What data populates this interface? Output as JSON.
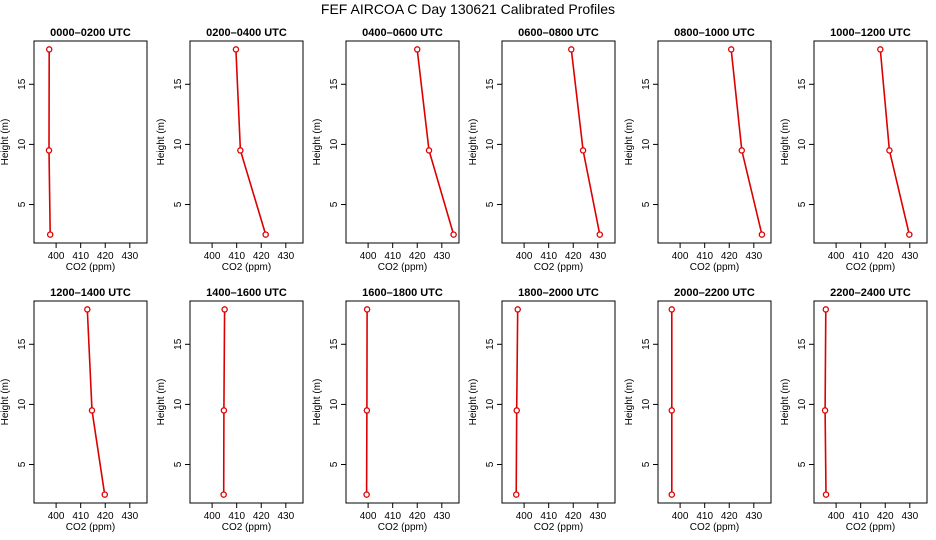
{
  "figure": {
    "title": "FEF AIRCOA C  Day 130621  Calibrated Profiles"
  },
  "colors": {
    "series": "#dd0000",
    "axes": "#000000"
  },
  "chart_data": [
    {
      "type": "line",
      "title": "0000–0200 UTC",
      "xlabel": "CO2 (ppm)",
      "ylabel": "Height (m)",
      "xlim": [
        391,
        437
      ],
      "ylim": [
        1.8,
        18.6
      ],
      "xticks": [
        400,
        410,
        420,
        430
      ],
      "yticks": [
        5,
        10,
        15
      ],
      "grid": false,
      "series": [
        {
          "points": [
            {
              "x": 397.6,
              "y": 2.5
            },
            {
              "x": 397.1,
              "y": 9.5
            },
            {
              "x": 397.2,
              "y": 17.9
            }
          ]
        }
      ]
    },
    {
      "type": "line",
      "title": "0200–0400 UTC",
      "xlabel": "CO2 (ppm)",
      "ylabel": "Height (m)",
      "xlim": [
        391,
        437
      ],
      "ylim": [
        1.8,
        18.6
      ],
      "xticks": [
        400,
        410,
        420,
        430
      ],
      "yticks": [
        5,
        10,
        15
      ],
      "grid": false,
      "series": [
        {
          "points": [
            {
              "x": 421.8,
              "y": 2.5
            },
            {
              "x": 411.5,
              "y": 9.5
            },
            {
              "x": 409.7,
              "y": 17.9
            }
          ]
        }
      ]
    },
    {
      "type": "line",
      "title": "0400–0600 UTC",
      "xlabel": "CO2 (ppm)",
      "ylabel": "Height (m)",
      "xlim": [
        391,
        437
      ],
      "ylim": [
        1.8,
        18.6
      ],
      "xticks": [
        400,
        410,
        420,
        430
      ],
      "yticks": [
        5,
        10,
        15
      ],
      "grid": false,
      "series": [
        {
          "points": [
            {
              "x": 434.8,
              "y": 2.5
            },
            {
              "x": 424.8,
              "y": 9.5
            },
            {
              "x": 420.0,
              "y": 17.9
            }
          ]
        }
      ]
    },
    {
      "type": "line",
      "title": "0600–0800 UTC",
      "xlabel": "CO2 (ppm)",
      "ylabel": "Height (m)",
      "xlim": [
        391,
        437
      ],
      "ylim": [
        1.8,
        18.6
      ],
      "xticks": [
        400,
        410,
        420,
        430
      ],
      "yticks": [
        5,
        10,
        15
      ],
      "grid": false,
      "series": [
        {
          "points": [
            {
              "x": 430.8,
              "y": 2.5
            },
            {
              "x": 424.0,
              "y": 9.5
            },
            {
              "x": 419.2,
              "y": 17.9
            }
          ]
        }
      ]
    },
    {
      "type": "line",
      "title": "0800–1000 UTC",
      "xlabel": "CO2 (ppm)",
      "ylabel": "Height (m)",
      "xlim": [
        391,
        437
      ],
      "ylim": [
        1.8,
        18.6
      ],
      "xticks": [
        400,
        410,
        420,
        430
      ],
      "yticks": [
        5,
        10,
        15
      ],
      "grid": false,
      "series": [
        {
          "points": [
            {
              "x": 433.3,
              "y": 2.5
            },
            {
              "x": 425.1,
              "y": 9.5
            },
            {
              "x": 420.8,
              "y": 17.9
            }
          ]
        }
      ]
    },
    {
      "type": "line",
      "title": "1000–1200 UTC",
      "xlabel": "CO2 (ppm)",
      "ylabel": "Height (m)",
      "xlim": [
        391,
        437
      ],
      "ylim": [
        1.8,
        18.6
      ],
      "xticks": [
        400,
        410,
        420,
        430
      ],
      "yticks": [
        5,
        10,
        15
      ],
      "grid": false,
      "series": [
        {
          "points": [
            {
              "x": 429.8,
              "y": 2.5
            },
            {
              "x": 421.7,
              "y": 9.5
            },
            {
              "x": 418.0,
              "y": 17.9
            }
          ]
        }
      ]
    },
    {
      "type": "line",
      "title": "1200–1400 UTC",
      "xlabel": "CO2 (ppm)",
      "ylabel": "Height (m)",
      "xlim": [
        391,
        437
      ],
      "ylim": [
        1.8,
        18.6
      ],
      "xticks": [
        400,
        410,
        420,
        430
      ],
      "yticks": [
        5,
        10,
        15
      ],
      "grid": false,
      "series": [
        {
          "points": [
            {
              "x": 419.8,
              "y": 2.5
            },
            {
              "x": 414.6,
              "y": 9.5
            },
            {
              "x": 412.7,
              "y": 17.9
            }
          ]
        }
      ]
    },
    {
      "type": "line",
      "title": "1400–1600 UTC",
      "xlabel": "CO2 (ppm)",
      "ylabel": "Height (m)",
      "xlim": [
        391,
        437
      ],
      "ylim": [
        1.8,
        18.6
      ],
      "xticks": [
        400,
        410,
        420,
        430
      ],
      "yticks": [
        5,
        10,
        15
      ],
      "grid": false,
      "series": [
        {
          "points": [
            {
              "x": 404.7,
              "y": 2.5
            },
            {
              "x": 404.8,
              "y": 9.5
            },
            {
              "x": 405.1,
              "y": 17.9
            }
          ]
        }
      ]
    },
    {
      "type": "line",
      "title": "1600–1800 UTC",
      "xlabel": "CO2 (ppm)",
      "ylabel": "Height (m)",
      "xlim": [
        391,
        437
      ],
      "ylim": [
        1.8,
        18.6
      ],
      "xticks": [
        400,
        410,
        420,
        430
      ],
      "yticks": [
        5,
        10,
        15
      ],
      "grid": false,
      "series": [
        {
          "points": [
            {
              "x": 399.4,
              "y": 2.5
            },
            {
              "x": 399.5,
              "y": 9.5
            },
            {
              "x": 399.6,
              "y": 17.9
            }
          ]
        }
      ]
    },
    {
      "type": "line",
      "title": "1800–2000 UTC",
      "xlabel": "CO2 (ppm)",
      "ylabel": "Height (m)",
      "xlim": [
        391,
        437
      ],
      "ylim": [
        1.8,
        18.6
      ],
      "xticks": [
        400,
        410,
        420,
        430
      ],
      "yticks": [
        5,
        10,
        15
      ],
      "grid": false,
      "series": [
        {
          "points": [
            {
              "x": 396.8,
              "y": 2.5
            },
            {
              "x": 397.0,
              "y": 9.5
            },
            {
              "x": 397.4,
              "y": 17.9
            }
          ]
        }
      ]
    },
    {
      "type": "line",
      "title": "2000–2200 UTC",
      "xlabel": "CO2 (ppm)",
      "ylabel": "Height (m)",
      "xlim": [
        391,
        437
      ],
      "ylim": [
        1.8,
        18.6
      ],
      "xticks": [
        400,
        410,
        420,
        430
      ],
      "yticks": [
        5,
        10,
        15
      ],
      "grid": false,
      "series": [
        {
          "points": [
            {
              "x": 396.6,
              "y": 2.5
            },
            {
              "x": 396.6,
              "y": 9.5
            },
            {
              "x": 396.6,
              "y": 17.9
            }
          ]
        }
      ]
    },
    {
      "type": "line",
      "title": "2200–2400 UTC",
      "xlabel": "CO2 (ppm)",
      "ylabel": "Height (m)",
      "xlim": [
        391,
        437
      ],
      "ylim": [
        1.8,
        18.6
      ],
      "xticks": [
        400,
        410,
        420,
        430
      ],
      "yticks": [
        5,
        10,
        15
      ],
      "grid": false,
      "series": [
        {
          "points": [
            {
              "x": 395.9,
              "y": 2.5
            },
            {
              "x": 395.5,
              "y": 9.5
            },
            {
              "x": 395.8,
              "y": 17.9
            }
          ]
        }
      ]
    }
  ]
}
